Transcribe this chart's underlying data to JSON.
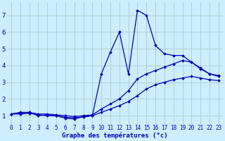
{
  "xlabel": "Graphe des températures (°c)",
  "bg_color": "#cceeff",
  "grid_color": "#aacccc",
  "line_color": "#0000bb",
  "xlim": [
    -0.5,
    23.5
  ],
  "ylim": [
    0.5,
    7.8
  ],
  "xticks": [
    0,
    1,
    2,
    3,
    4,
    5,
    6,
    7,
    8,
    9,
    10,
    11,
    12,
    13,
    14,
    15,
    16,
    17,
    18,
    19,
    20,
    21,
    22,
    23
  ],
  "yticks": [
    1,
    2,
    3,
    4,
    5,
    6,
    7
  ],
  "series": [
    {
      "x": [
        0,
        1,
        2,
        3,
        4,
        5,
        6,
        7,
        8,
        9,
        10,
        11,
        12,
        13,
        14,
        15,
        16,
        17,
        18,
        19,
        20,
        21,
        22,
        23
      ],
      "y": [
        1.1,
        1.2,
        1.2,
        1.0,
        1.05,
        1.0,
        0.85,
        0.8,
        0.95,
        1.0,
        3.5,
        4.8,
        6.0,
        3.5,
        7.3,
        7.0,
        5.2,
        4.7,
        4.6,
        4.6,
        4.2,
        3.8,
        3.5,
        3.4
      ]
    },
    {
      "x": [
        0,
        1,
        2,
        3,
        4,
        5,
        6,
        7,
        8,
        9,
        10,
        11,
        12,
        13,
        14,
        15,
        16,
        17,
        18,
        19,
        20,
        21,
        22,
        23
      ],
      "y": [
        1.1,
        1.15,
        1.2,
        1.1,
        1.1,
        1.05,
        1.0,
        0.95,
        1.0,
        1.05,
        1.4,
        1.7,
        2.0,
        2.5,
        3.2,
        3.5,
        3.7,
        3.9,
        4.1,
        4.3,
        4.2,
        3.85,
        3.5,
        3.35
      ]
    },
    {
      "x": [
        0,
        1,
        2,
        3,
        4,
        5,
        6,
        7,
        8,
        9,
        10,
        11,
        12,
        13,
        14,
        15,
        16,
        17,
        18,
        19,
        20,
        21,
        22,
        23
      ],
      "y": [
        1.1,
        1.1,
        1.15,
        1.05,
        1.0,
        1.0,
        0.9,
        0.88,
        0.92,
        1.0,
        1.2,
        1.4,
        1.6,
        1.85,
        2.2,
        2.6,
        2.85,
        3.0,
        3.15,
        3.25,
        3.35,
        3.25,
        3.15,
        3.1
      ]
    }
  ]
}
